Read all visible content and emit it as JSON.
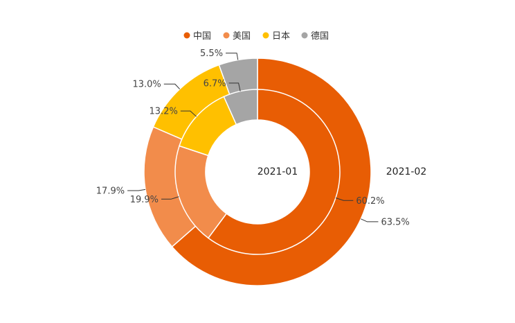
{
  "chart_data": {
    "type": "pie",
    "variant": "nested-donut",
    "legend": {
      "placement": "top-center",
      "entries": [
        "中国",
        "美国",
        "日本",
        "德国"
      ]
    },
    "colors": {
      "中国": "#E85D04",
      "美国": "#F28C4B",
      "日本": "#FFC000",
      "德国": "#A5A5A5"
    },
    "categories": [
      "中国",
      "美国",
      "日本",
      "德国"
    ],
    "series": [
      {
        "name": "2021-01",
        "ring": "inner",
        "values": [
          60.2,
          19.9,
          13.2,
          6.7
        ],
        "labels": [
          "60.2%",
          "19.9%",
          "13.2%",
          "6.7%"
        ]
      },
      {
        "name": "2021-02",
        "ring": "outer",
        "values": [
          63.5,
          17.9,
          13.0,
          5.5
        ],
        "labels": [
          "63.5%",
          "17.9%",
          "13.0%",
          "5.5%"
        ]
      }
    ]
  }
}
